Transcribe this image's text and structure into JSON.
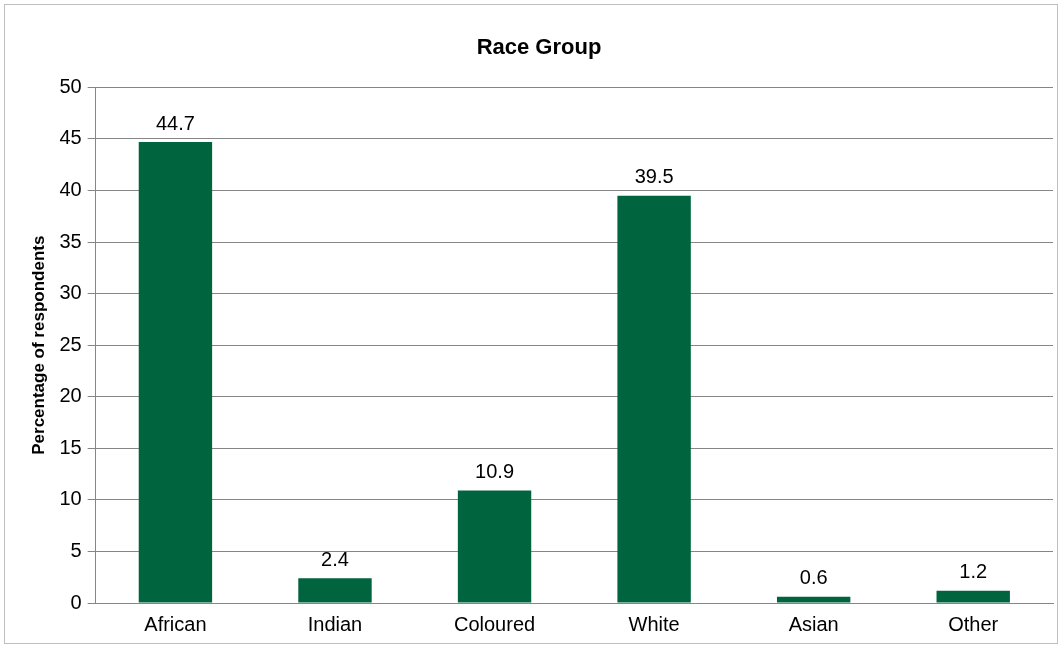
{
  "chart_data": {
    "type": "bar",
    "title": "Race Group",
    "ylabel": "Percentage of respondents",
    "categories": [
      "African",
      "Indian",
      "Coloured",
      "White",
      "Asian",
      "Other"
    ],
    "values": [
      44.7,
      2.4,
      10.9,
      39.5,
      0.6,
      1.2
    ],
    "color": "#00643f",
    "ylim": [
      0,
      50
    ],
    "yticks": [
      0,
      5,
      10,
      15,
      20,
      25,
      30,
      35,
      40,
      45,
      50
    ],
    "grid": "y",
    "data_labels": true,
    "legend": false
  }
}
